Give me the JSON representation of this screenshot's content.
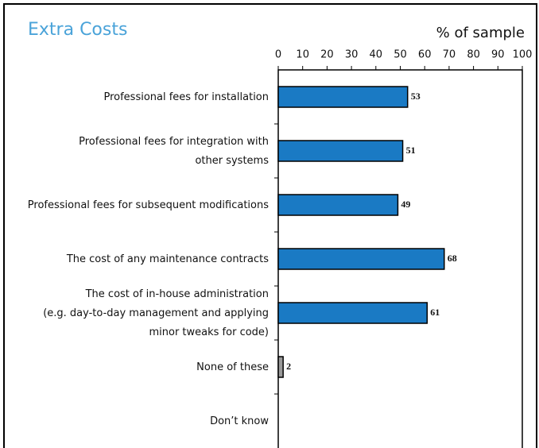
{
  "chart_data": {
    "type": "bar",
    "orientation": "horizontal",
    "title": "Extra Costs",
    "x_label": "% of sample",
    "categories": [
      [
        "Professional fees for installation"
      ],
      [
        "Professional fees for integration with",
        "other systems"
      ],
      [
        "Professional fees for subsequent modifications"
      ],
      [
        "The cost of any maintenance contracts"
      ],
      [
        "The cost of in-house administration",
        "(e.g. day-to-day management and applying",
        "minor tweaks for code)"
      ],
      [
        "None of these"
      ],
      [
        "Don’t know"
      ]
    ],
    "values": [
      53,
      51,
      49,
      68,
      61,
      2,
      null
    ],
    "colors": [
      "#1a7ac4",
      "#1a7ac4",
      "#1a7ac4",
      "#1a7ac4",
      "#1a7ac4",
      "#9a9a9a",
      "#1a7ac4"
    ],
    "xlim": [
      0,
      100
    ],
    "xticks": [
      0,
      10,
      20,
      30,
      40,
      50,
      60,
      70,
      80,
      90,
      100
    ]
  }
}
